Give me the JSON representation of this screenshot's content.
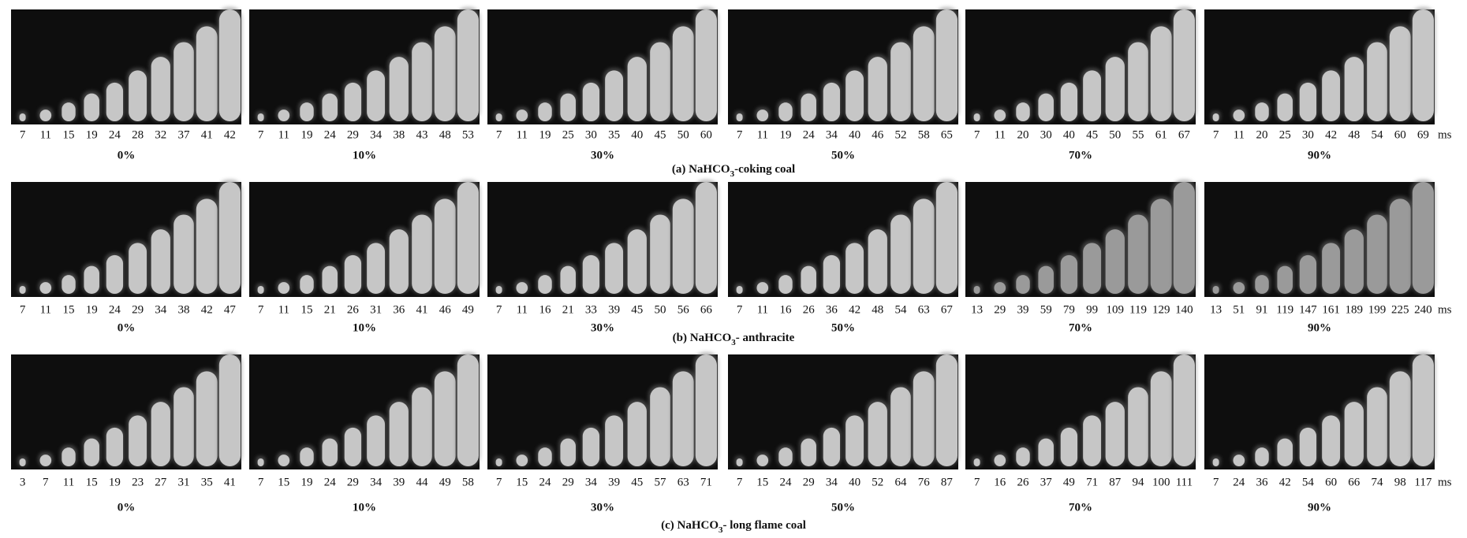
{
  "figure": {
    "rows": [
      {
        "caption": {
          "prefix": "(a) NaHCO",
          "subscript": "3",
          "suffix": "-coking coal"
        },
        "unit": "ms",
        "panels": [
          {
            "label": "0%",
            "times": [
              7,
              11,
              15,
              19,
              24,
              28,
              32,
              37,
              41,
              42
            ]
          },
          {
            "label": "10%",
            "times": [
              7,
              11,
              19,
              24,
              29,
              34,
              38,
              43,
              48,
              53
            ]
          },
          {
            "label": "30%",
            "times": [
              7,
              11,
              19,
              25,
              30,
              35,
              40,
              45,
              50,
              60
            ]
          },
          {
            "label": "50%",
            "times": [
              7,
              11,
              19,
              24,
              34,
              40,
              46,
              52,
              58,
              65
            ]
          },
          {
            "label": "70%",
            "times": [
              7,
              11,
              20,
              30,
              40,
              45,
              50,
              55,
              61,
              67
            ]
          },
          {
            "label": "90%",
            "times": [
              7,
              11,
              20,
              25,
              30,
              42,
              48,
              54,
              60,
              69
            ]
          }
        ]
      },
      {
        "caption": {
          "prefix": "(b) NaHCO",
          "subscript": "3",
          "suffix": "- anthracite"
        },
        "unit": "ms",
        "panels": [
          {
            "label": "0%",
            "times": [
              7,
              11,
              15,
              19,
              24,
              29,
              34,
              38,
              42,
              47
            ]
          },
          {
            "label": "10%",
            "times": [
              7,
              11,
              15,
              21,
              26,
              31,
              36,
              41,
              46,
              49
            ]
          },
          {
            "label": "30%",
            "times": [
              7,
              11,
              16,
              21,
              33,
              39,
              45,
              50,
              56,
              66
            ]
          },
          {
            "label": "50%",
            "times": [
              7,
              11,
              16,
              26,
              36,
              42,
              48,
              54,
              63,
              67
            ]
          },
          {
            "label": "70%",
            "times": [
              13,
              29,
              39,
              59,
              79,
              99,
              109,
              119,
              129,
              140
            ]
          },
          {
            "label": "90%",
            "times": [
              13,
              51,
              91,
              119,
              147,
              161,
              189,
              199,
              225,
              240
            ]
          }
        ]
      },
      {
        "caption": {
          "prefix": "(c) NaHCO",
          "subscript": "3",
          "suffix": "- long flame coal"
        },
        "unit": "ms",
        "panels": [
          {
            "label": "0%",
            "times": [
              3,
              7,
              11,
              15,
              19,
              23,
              27,
              31,
              35,
              41
            ]
          },
          {
            "label": "10%",
            "times": [
              7,
              15,
              19,
              24,
              29,
              34,
              39,
              44,
              49,
              58
            ]
          },
          {
            "label": "30%",
            "times": [
              7,
              15,
              24,
              29,
              34,
              39,
              45,
              57,
              63,
              71
            ]
          },
          {
            "label": "50%",
            "times": [
              7,
              15,
              24,
              29,
              34,
              40,
              52,
              64,
              76,
              87
            ]
          },
          {
            "label": "70%",
            "times": [
              7,
              16,
              26,
              37,
              49,
              71,
              87,
              94,
              100,
              111
            ]
          },
          {
            "label": "90%",
            "times": [
              7,
              24,
              36,
              42,
              54,
              60,
              66,
              74,
              98,
              117
            ]
          }
        ]
      }
    ]
  }
}
